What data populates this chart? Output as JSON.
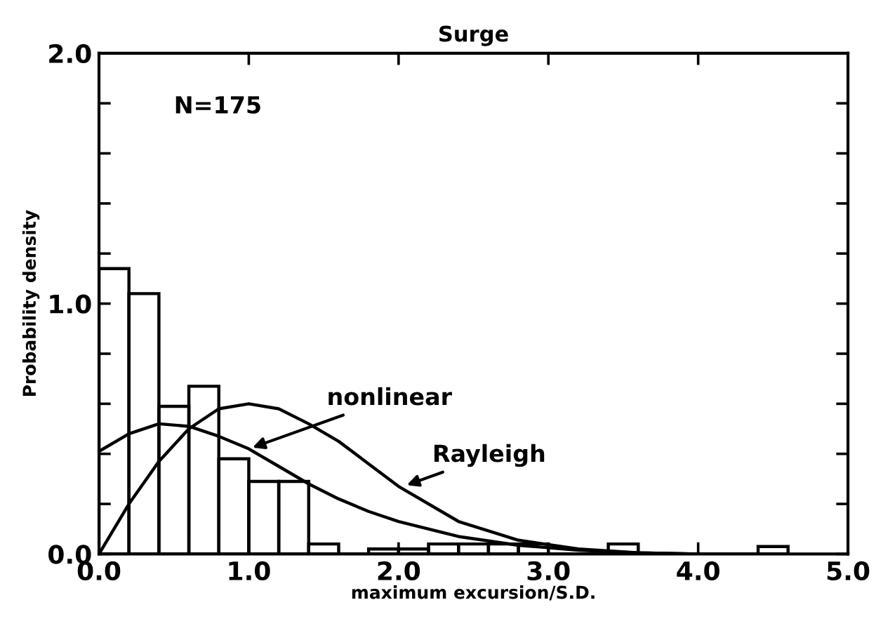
{
  "chart_data": {
    "type": "histogram",
    "title": "Surge",
    "xlabel": "maximum excursion/S.D.",
    "ylabel": "Probability density",
    "bins": [
      0,
      0.2,
      0.4,
      0.6,
      0.8,
      1.0,
      1.2,
      1.4,
      1.6,
      1.8,
      2.0,
      2.2,
      2.4,
      2.6,
      2.8,
      3.0,
      3.2,
      3.4,
      3.6,
      3.8,
      4.0,
      4.2,
      4.4,
      4.6
    ],
    "values": [
      1.14,
      1.04,
      0.59,
      0.67,
      0.38,
      0.29,
      0.29,
      0.04,
      0,
      0.02,
      0.02,
      0.04,
      0.04,
      0.04,
      0.04,
      0,
      0,
      0.04,
      0,
      0,
      0,
      0,
      0.03
    ],
    "color": "#000000",
    "series": [
      {
        "type": "line",
        "color": "#000000",
        "x": [
          0,
          0.2,
          0.4,
          0.6,
          0.8,
          1.0,
          1.2,
          1.4,
          1.6,
          1.8,
          2.0,
          2.4,
          2.8,
          3.2,
          3.6,
          4.0
        ],
        "values": [
          0.41,
          0.48,
          0.52,
          0.51,
          0.47,
          0.42,
          0.35,
          0.28,
          0.22,
          0.17,
          0.13,
          0.07,
          0.035,
          0.015,
          0.005,
          0
        ]
      },
      {
        "type": "line",
        "color": "#000000",
        "x": [
          0,
          0.2,
          0.4,
          0.6,
          0.8,
          1.0,
          1.2,
          1.4,
          1.6,
          1.8,
          2.0,
          2.4,
          2.8,
          3.2,
          3.6,
          4.0
        ],
        "values": [
          0,
          0.2,
          0.37,
          0.5,
          0.58,
          0.6,
          0.58,
          0.52,
          0.45,
          0.36,
          0.27,
          0.13,
          0.055,
          0.02,
          0.005,
          0
        ]
      }
    ],
    "annotations": [
      "N=175",
      {
        "text": "nonlinear",
        "x": 1.0,
        "y": 0.42
      },
      {
        "text": "Rayleigh",
        "x": 2.03,
        "y": 0.27
      }
    ],
    "xlim": [
      0,
      5
    ],
    "ylim": [
      0,
      2
    ],
    "xticks": [
      {
        "value": 0,
        "label": "0.0"
      },
      {
        "value": 1,
        "label": "1.0"
      },
      {
        "value": 2,
        "label": "2.0"
      },
      {
        "value": 3,
        "label": "3.0"
      },
      {
        "value": 4,
        "label": "4.0"
      },
      {
        "value": 5,
        "label": "5.0"
      }
    ],
    "yticks": [
      {
        "value": 0,
        "label": "0.0"
      },
      {
        "value": 0.2,
        "label": null
      },
      {
        "value": 0.4,
        "label": null
      },
      {
        "value": 0.6,
        "label": null
      },
      {
        "value": 0.8,
        "label": null
      },
      {
        "value": 1,
        "label": "1.0"
      },
      {
        "value": 1.2,
        "label": null
      },
      {
        "value": 1.4,
        "label": null
      },
      {
        "value": 1.6,
        "label": null
      },
      {
        "value": 1.8,
        "label": null
      },
      {
        "value": 2,
        "label": "2.0"
      }
    ],
    "grid": false,
    "legend": false
  }
}
